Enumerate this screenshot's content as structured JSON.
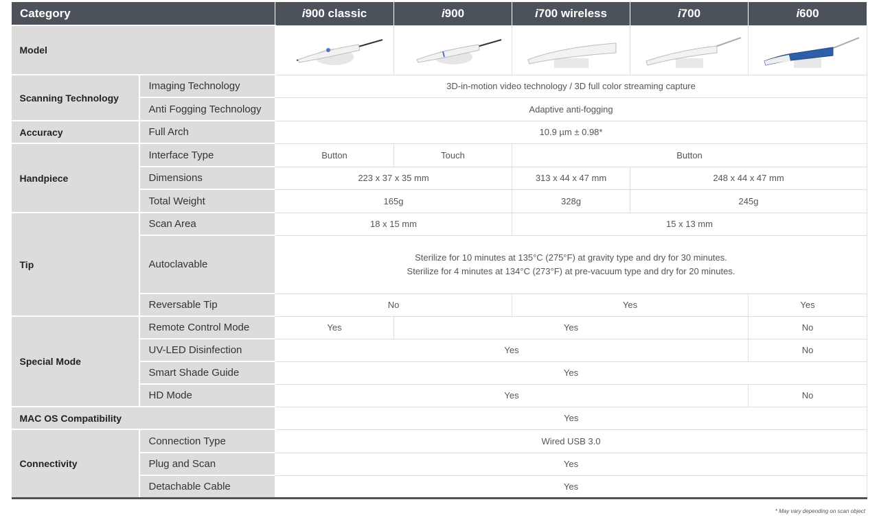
{
  "header": {
    "category": "Category",
    "models": [
      {
        "prefix": "i",
        "name": "900 classic"
      },
      {
        "prefix": "i",
        "name": "900"
      },
      {
        "prefix": "i",
        "name": "700 wireless"
      },
      {
        "prefix": "i",
        "name": "700"
      },
      {
        "prefix": "i",
        "name": "600"
      }
    ]
  },
  "rows": {
    "model": "Model",
    "scanning": "Scanning Technology",
    "imaging": "Imaging Technology",
    "imaging_v": "3D-in-motion video technology / 3D full color streaming capture",
    "antifog": "Anti Fogging Technology",
    "antifog_v": "Adaptive anti-fogging",
    "accuracy": "Accuracy",
    "fullarch": "Full Arch",
    "fullarch_v": "10.9 µm ± 0.98*",
    "handpiece": "Handpiece",
    "interface": "Interface Type",
    "interface_v": [
      "Button",
      "Touch",
      "Button"
    ],
    "dimensions": "Dimensions",
    "dimensions_v": [
      "223 x 37 x 35 mm",
      "313 x 44 x 47 mm",
      "248 x 44 x 47 mm"
    ],
    "weight": "Total Weight",
    "weight_v": [
      "165g",
      "328g",
      "245g"
    ],
    "tip": "Tip",
    "scanarea": "Scan Area",
    "scanarea_v": [
      "18 x 15 mm",
      "15 x 13 mm"
    ],
    "autoclavable": "Autoclavable",
    "autoclavable_v": [
      "Sterilize for 10 minutes at 135°C (275°F) at gravity type and dry for 30 minutes.",
      "Sterilize for 4 minutes at 134°C (273°F) at pre-vacuum type and dry for 20 minutes."
    ],
    "reversable": "Reversable Tip",
    "reversable_v": [
      "No",
      "Yes",
      "Yes"
    ],
    "special": "Special Mode",
    "remote": "Remote Control Mode",
    "remote_v": [
      "Yes",
      "Yes",
      "No"
    ],
    "uv": "UV-LED Disinfection",
    "uv_v": [
      "Yes",
      "No"
    ],
    "shade": "Smart Shade Guide",
    "shade_v": "Yes",
    "hd": "HD Mode",
    "hd_v": [
      "Yes",
      "No"
    ],
    "mac": "MAC OS Compatibility",
    "mac_v": "Yes",
    "connectivity": "Connectivity",
    "conntype": "Connection Type",
    "conntype_v": "Wired USB 3.0",
    "plug": "Plug and Scan",
    "plug_v": "Yes",
    "detach": "Detachable Cable",
    "detach_v": "Yes"
  },
  "footnote": "* May vary depending on scan object",
  "colors": {
    "header_bg": "#4b525a",
    "category_bg": "#dcdcdc",
    "i600_accent": "#2f5fa8"
  }
}
